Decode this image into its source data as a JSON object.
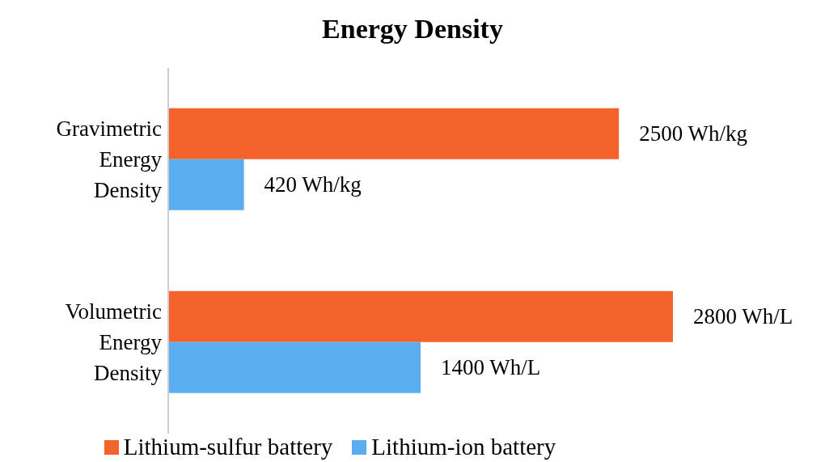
{
  "chart_data": {
    "type": "bar",
    "orientation": "horizontal",
    "title": "Energy Density",
    "categories": [
      "Gravimetric Energy Density",
      "Volumetric Energy Density"
    ],
    "series": [
      {
        "name": "Lithium-sulfur battery",
        "color": "#f2622a",
        "values": [
          2500,
          2800
        ],
        "value_labels": [
          "2500 Wh/kg",
          "2800 Wh/L"
        ]
      },
      {
        "name": "Lithium-ion battery",
        "color": "#5aaef0",
        "values": [
          420,
          1400
        ],
        "value_labels": [
          "420 Wh/kg",
          "1400 Wh/L"
        ]
      }
    ],
    "legend": "bottom",
    "grid": false,
    "tick_labels": "y"
  }
}
